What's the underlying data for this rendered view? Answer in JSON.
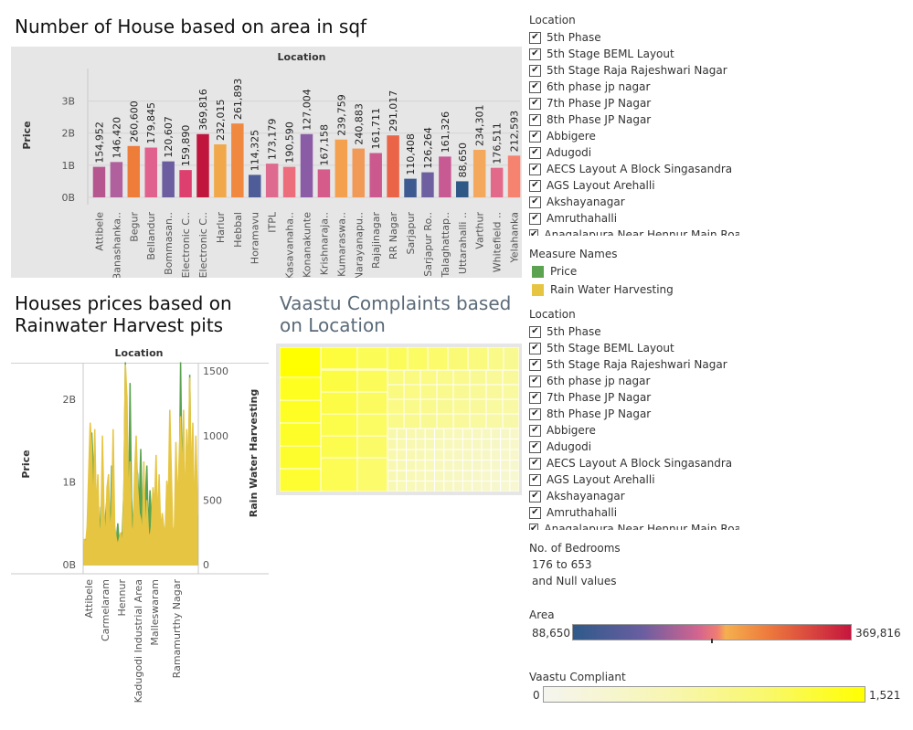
{
  "chart_data": [
    {
      "type": "bar",
      "title": "Number of House based on area in sqf",
      "header": "Location",
      "ylabel": "Price",
      "ylim": [
        0,
        3.5
      ],
      "yticks": [
        "0B",
        "1B",
        "2B",
        "3B"
      ],
      "categories": [
        "Attibele",
        "Banashanka..",
        "Begur",
        "Bellandur",
        "Bommasan..",
        "Electronic C..",
        "Electronic C..",
        "Harlur",
        "Hebbal",
        "Horamavu",
        "ITPL",
        "Kasavanaha..",
        "Konanakunte",
        "Krishnaraja..",
        "Kumaraswa..",
        "Narayanapu..",
        "Rajajinagar",
        "RR Nagar",
        "Sarjapur",
        "Sarjapur Ro..",
        "Talaghattap..",
        "Uttarahalli ..",
        "Varthur",
        "Whitefield ..",
        "Yelahanka"
      ],
      "values": [
        0.95,
        1.1,
        1.6,
        1.55,
        1.12,
        0.85,
        1.97,
        1.65,
        2.3,
        0.7,
        1.05,
        0.95,
        1.97,
        0.87,
        1.8,
        1.52,
        1.38,
        1.93,
        0.58,
        0.78,
        1.27,
        0.5,
        1.48,
        0.92,
        1.3
      ],
      "labels": [
        "154,952",
        "146,420",
        "260,600",
        "179,845",
        "120,607",
        "159,890",
        "369,816",
        "232,015",
        "261,893",
        "114,325",
        "173,179",
        "190,590",
        "127,004",
        "167,158",
        "239,759",
        "240,883",
        "161,711",
        "291,017",
        "110,408",
        "126,264",
        "161,326",
        "88,650",
        "234,301",
        "176,511",
        "212,593"
      ],
      "colors": [
        "#b5568e",
        "#b0609d",
        "#ee7d3a",
        "#e0608e",
        "#6b5d9f",
        "#dd3f6e",
        "#c0163e",
        "#f0a84a",
        "#f08840",
        "#4e5c98",
        "#de6b8f",
        "#ec6e7c",
        "#8a5ca5",
        "#d55b8a",
        "#f3a04f",
        "#f19a58",
        "#cc598e",
        "#ea6547",
        "#3e5b91",
        "#6e60a0",
        "#c75a93",
        "#2f5887",
        "#f4a85c",
        "#e26989",
        "#f6836f"
      ]
    },
    {
      "type": "line",
      "title": "Houses prices based on Rainwater Harvest pits",
      "header": "Location",
      "ylabel": "Price",
      "y2label": "Rain Water Harvesting",
      "ylim": [
        0,
        2.5
      ],
      "y2lim": [
        0,
        1600
      ],
      "yticks": [
        "0B",
        "1B",
        "2B"
      ],
      "y2ticks": [
        "0",
        "500",
        "1000",
        "1500"
      ],
      "xticks": [
        "Attibele",
        "Carmelaram",
        "Hennur",
        "Kadugodi Industrial Area",
        "Malleswaram",
        "Ramamurthy Nagar"
      ],
      "series": [
        {
          "name": "Price",
          "color": "#5ba350",
          "values": [
            0.25,
            0.3,
            0.28,
            0.9,
            0.4,
            1.6,
            1.2,
            0.9,
            0.35,
            0.45,
            0.3,
            0.7,
            0.5,
            0.3,
            0.6,
            0.8,
            0.35,
            0.3,
            1.2,
            0.6,
            0.4,
            0.3,
            0.5,
            0.25,
            0.3,
            0.4,
            0.9,
            2.45,
            0.6,
            0.5,
            2.2,
            0.8,
            0.4,
            0.5,
            1.2,
            1.1,
            0.7,
            1.4,
            0.6,
            0.5,
            0.8,
            1.2,
            0.4,
            0.9,
            0.6,
            0.5,
            0.35,
            0.3,
            0.4,
            0.3,
            0.25,
            0.4,
            0.3,
            0.35,
            0.9,
            0.5,
            1.55,
            0.6,
            0.4,
            0.3,
            0.5,
            0.35,
            0.6,
            2.45,
            1.1,
            0.5,
            0.3,
            1.6,
            0.5,
            2.3,
            0.6,
            0.4,
            0.3,
            0.5,
            0.6
          ]
        },
        {
          "name": "Rain Water Harvesting",
          "color": "#e6c543",
          "values": [
            200,
            150,
            300,
            700,
            1100,
            900,
            300,
            1050,
            400,
            700,
            200,
            300,
            1000,
            400,
            150,
            600,
            700,
            200,
            400,
            1050,
            300,
            200,
            150,
            200,
            250,
            100,
            600,
            1550,
            1300,
            450,
            800,
            300,
            200,
            700,
            1000,
            600,
            400,
            350,
            200,
            800,
            150,
            500,
            250,
            200,
            300,
            600,
            450,
            850,
            300,
            700,
            250,
            400,
            300,
            200,
            650,
            500,
            1200,
            700,
            200,
            300,
            950,
            450,
            800,
            1150,
            600,
            1200,
            350,
            1050,
            700,
            1450,
            600,
            1100,
            300,
            1000,
            500
          ]
        }
      ]
    },
    {
      "type": "heatmap",
      "title": "Vaastu Complaints based on Location"
    }
  ],
  "sidebar": {
    "location_header": "Location",
    "locations": [
      "5th Phase",
      "5th Stage BEML Layout",
      "5th Stage Raja Rajeshwari Nagar",
      "6th phase jp nagar",
      "7th Phase JP Nagar",
      "8th Phase JP Nagar",
      "Abbigere",
      "Adugodi",
      "AECS Layout A Block Singasandra",
      "AGS Layout Arehalli",
      "Akshayanagar",
      "Amruthahalli",
      "Anagalapura Near Hennur Main Road"
    ],
    "check_glyph": "✔",
    "measure_header": "Measure Names",
    "measures": [
      {
        "label": "Price",
        "color": "#5ba350"
      },
      {
        "label": "Rain Water Harvesting",
        "color": "#e6c543"
      }
    ],
    "bedrooms_header": "No. of Bedrooms",
    "bedrooms_range": "176 to 653",
    "bedrooms_null": "and Null values",
    "area_header": "Area",
    "area_min": "88,650",
    "area_max": "369,816",
    "vaastu_header": "Vaastu Compliant",
    "vaastu_min": "0",
    "vaastu_max": "1,521"
  }
}
